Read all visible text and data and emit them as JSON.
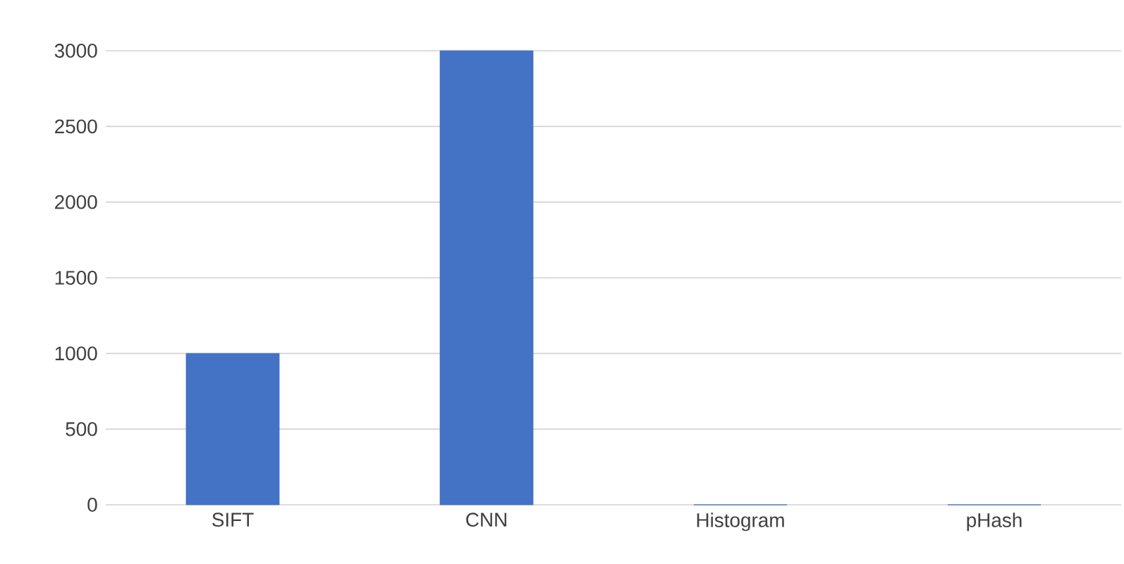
{
  "chart_data": {
    "type": "bar",
    "categories": [
      "SIFT",
      "CNN",
      "Histogram",
      "pHash"
    ],
    "values": [
      1000,
      3000,
      0,
      0
    ],
    "color": "#4472c4",
    "ylim": [
      0,
      3000
    ],
    "yticks": [
      0,
      500,
      1000,
      1500,
      2000,
      2500,
      3000
    ],
    "grid": "y"
  }
}
